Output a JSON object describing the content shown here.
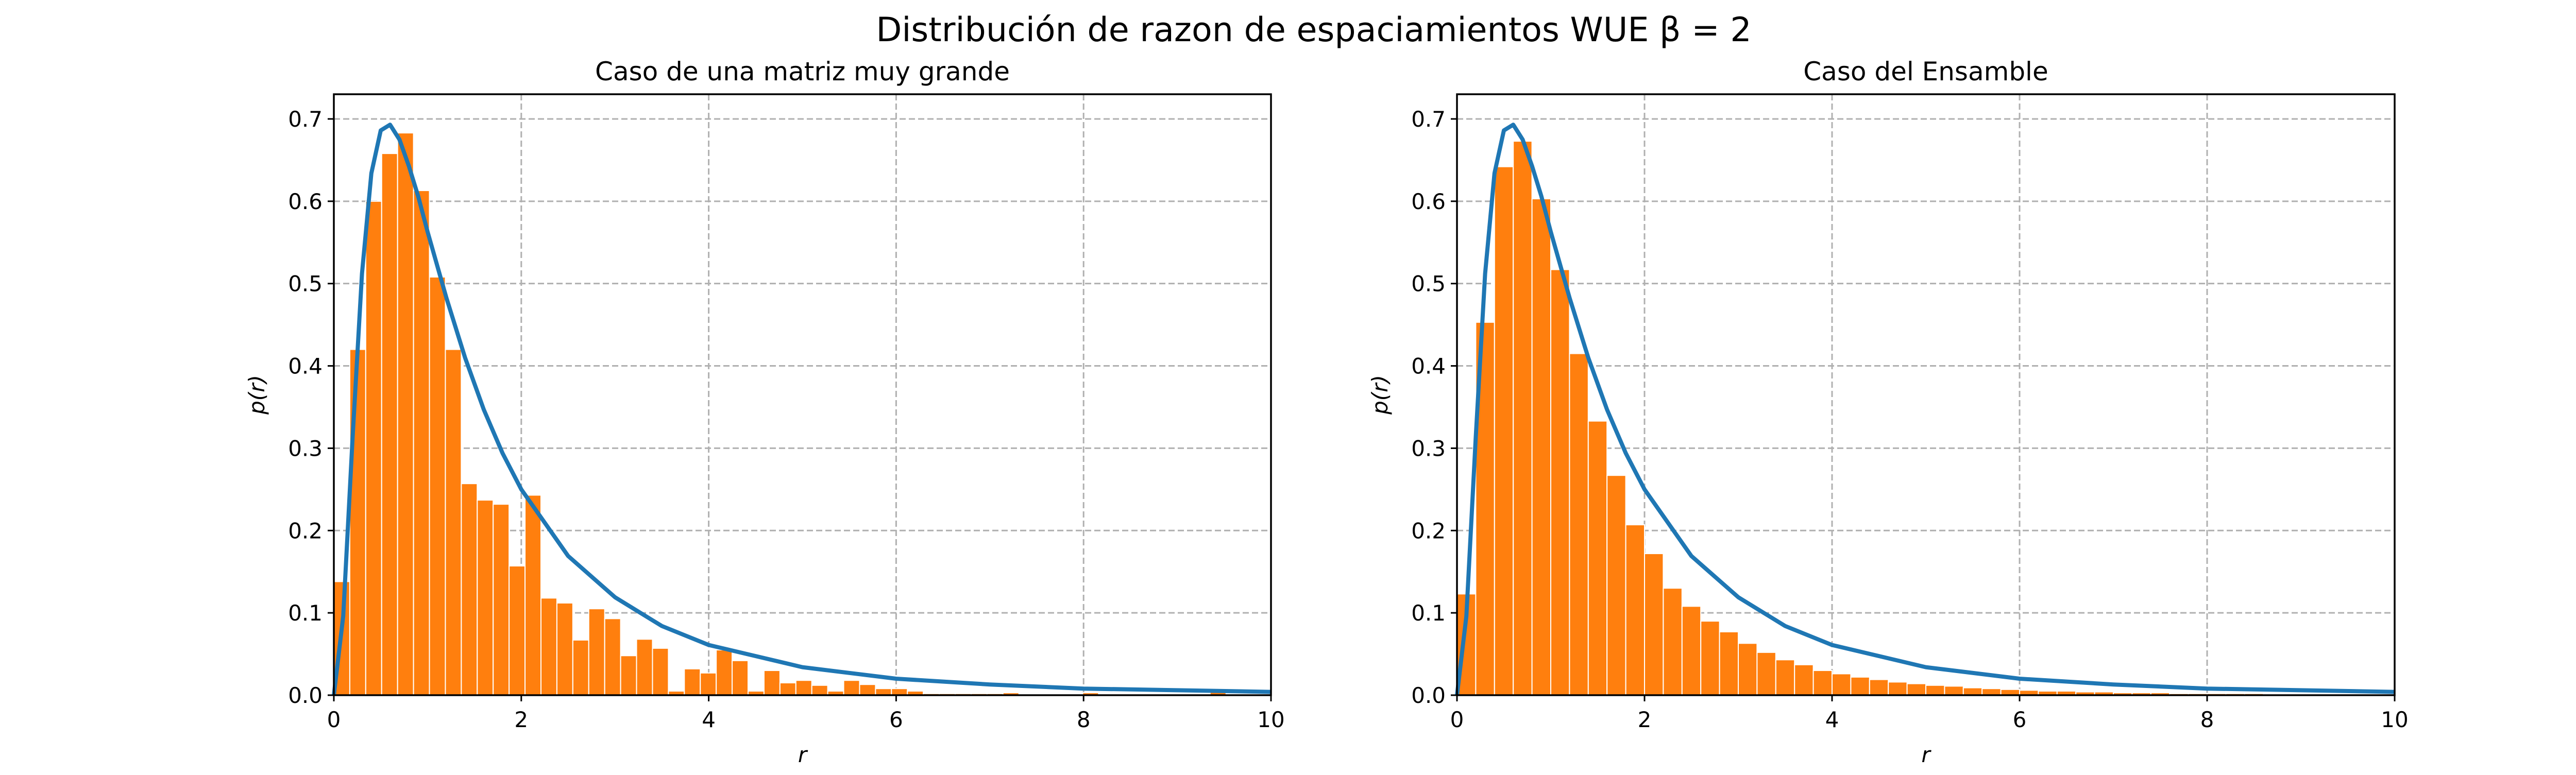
{
  "figure": {
    "title": "Distribución de razon de espaciamientos WUE β = 2"
  },
  "colors": {
    "histogram": "#ff7f0e",
    "curve": "#1f77b4"
  },
  "chart_data": [
    {
      "type": "bar",
      "title": "Caso de una matriz muy grande",
      "xlabel": "r",
      "ylabel": "p(r)",
      "xlim": [
        0,
        10
      ],
      "ylim": [
        0,
        0.73
      ],
      "xticks": [
        0,
        2,
        4,
        6,
        8,
        10
      ],
      "yticks": [
        0.0,
        0.1,
        0.2,
        0.3,
        0.4,
        0.5,
        0.6,
        0.7
      ],
      "ytick_labels": [
        "0.0",
        "0.1",
        "0.2",
        "0.3",
        "0.4",
        "0.5",
        "0.6",
        "0.7"
      ],
      "grid": true,
      "bin_width": 0.17,
      "bin_start": 0.0,
      "values": [
        0.138,
        0.42,
        0.6,
        0.658,
        0.683,
        0.613,
        0.508,
        0.42,
        0.257,
        0.237,
        0.232,
        0.157,
        0.243,
        0.118,
        0.112,
        0.067,
        0.105,
        0.093,
        0.048,
        0.068,
        0.057,
        0.005,
        0.032,
        0.027,
        0.055,
        0.042,
        0.005,
        0.03,
        0.015,
        0.018,
        0.012,
        0.005,
        0.018,
        0.013,
        0.008,
        0.008,
        0.005,
        0.002,
        0.002,
        0.002,
        0.002,
        0.002,
        0.003,
        0.0,
        0.0,
        0.0,
        0.0,
        0.003,
        0.0,
        0.0,
        0.0,
        0.0,
        0.0,
        0.0,
        0.0,
        0.004,
        0.0,
        0.0
      ],
      "curve": {
        "x": [
          0,
          0.1,
          0.2,
          0.3,
          0.4,
          0.5,
          0.6,
          0.7,
          0.8,
          0.9,
          1.0,
          1.2,
          1.4,
          1.6,
          1.8,
          2.0,
          2.5,
          3.0,
          3.5,
          4.0,
          5.0,
          6.0,
          7.0,
          8.0,
          9.0,
          10.0
        ],
        "y": [
          0.0,
          0.096,
          0.313,
          0.512,
          0.634,
          0.686,
          0.693,
          0.675,
          0.643,
          0.606,
          0.563,
          0.483,
          0.41,
          0.347,
          0.294,
          0.25,
          0.169,
          0.119,
          0.084,
          0.061,
          0.034,
          0.02,
          0.013,
          0.008,
          0.006,
          0.004
        ]
      }
    },
    {
      "type": "bar",
      "title": "Caso del Ensamble",
      "xlabel": "r",
      "ylabel": "p(r)",
      "xlim": [
        0,
        10
      ],
      "ylim": [
        0,
        0.73
      ],
      "xticks": [
        0,
        2,
        4,
        6,
        8,
        10
      ],
      "yticks": [
        0.0,
        0.1,
        0.2,
        0.3,
        0.4,
        0.5,
        0.6,
        0.7
      ],
      "ytick_labels": [
        "0.0",
        "0.1",
        "0.2",
        "0.3",
        "0.4",
        "0.5",
        "0.6",
        "0.7"
      ],
      "grid": true,
      "bin_width": 0.2,
      "bin_start": 0.0,
      "values": [
        0.123,
        0.453,
        0.642,
        0.673,
        0.603,
        0.517,
        0.415,
        0.333,
        0.267,
        0.207,
        0.172,
        0.13,
        0.108,
        0.09,
        0.077,
        0.063,
        0.052,
        0.043,
        0.037,
        0.03,
        0.026,
        0.022,
        0.019,
        0.016,
        0.014,
        0.012,
        0.011,
        0.009,
        0.008,
        0.007,
        0.006,
        0.005,
        0.005,
        0.004,
        0.004,
        0.003,
        0.003,
        0.003,
        0.002,
        0.002,
        0.002,
        0.002,
        0.002,
        0.001,
        0.001,
        0.001,
        0.001,
        0.001,
        0.001,
        0.001
      ],
      "curve": {
        "x": [
          0,
          0.1,
          0.2,
          0.3,
          0.4,
          0.5,
          0.6,
          0.7,
          0.8,
          0.9,
          1.0,
          1.2,
          1.4,
          1.6,
          1.8,
          2.0,
          2.5,
          3.0,
          3.5,
          4.0,
          5.0,
          6.0,
          7.0,
          8.0,
          9.0,
          10.0
        ],
        "y": [
          0.0,
          0.096,
          0.313,
          0.512,
          0.634,
          0.686,
          0.693,
          0.675,
          0.643,
          0.606,
          0.563,
          0.483,
          0.41,
          0.347,
          0.294,
          0.25,
          0.169,
          0.119,
          0.084,
          0.061,
          0.034,
          0.02,
          0.013,
          0.008,
          0.006,
          0.004
        ]
      }
    }
  ]
}
